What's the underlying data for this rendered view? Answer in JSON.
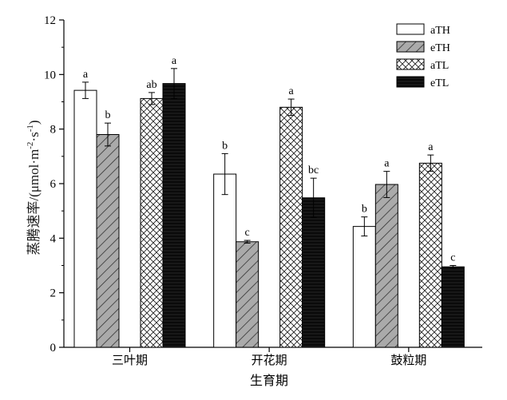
{
  "chart_data": {
    "type": "bar",
    "xlabel": "生育期",
    "ylabel_prefix": "蒸腾速率/(μmol·m",
    "ylabel_sup1": "-2",
    "ylabel_mid": "·s",
    "ylabel_sup2": "-1",
    "ylabel_suffix": ")",
    "ylim": [
      0,
      12
    ],
    "yticks": [
      "0",
      "2",
      "4",
      "6",
      "8",
      "10",
      "12"
    ],
    "categories": [
      "三叶期",
      "开花期",
      "鼓粒期"
    ],
    "legend_position": "top-right",
    "series": [
      {
        "name": "aTH",
        "pattern": "white",
        "values": [
          9.42,
          6.35,
          4.43
        ],
        "errors": [
          0.3,
          0.75,
          0.35
        ],
        "labels": [
          "a",
          "b",
          "b"
        ]
      },
      {
        "name": "eTH",
        "pattern": "diagonal",
        "values": [
          7.8,
          3.87,
          5.97
        ],
        "errors": [
          0.42,
          0.05,
          0.48
        ],
        "labels": [
          "b",
          "c",
          "a"
        ]
      },
      {
        "name": "aTL",
        "pattern": "crosshatch",
        "values": [
          9.12,
          8.8,
          6.75
        ],
        "errors": [
          0.22,
          0.3,
          0.3
        ],
        "labels": [
          "ab",
          "a",
          "a"
        ]
      },
      {
        "name": "eTL",
        "pattern": "black",
        "values": [
          9.67,
          5.48,
          2.95
        ],
        "errors": [
          0.55,
          0.72,
          0.05
        ],
        "labels": [
          "a",
          "bc",
          "c"
        ]
      }
    ]
  }
}
